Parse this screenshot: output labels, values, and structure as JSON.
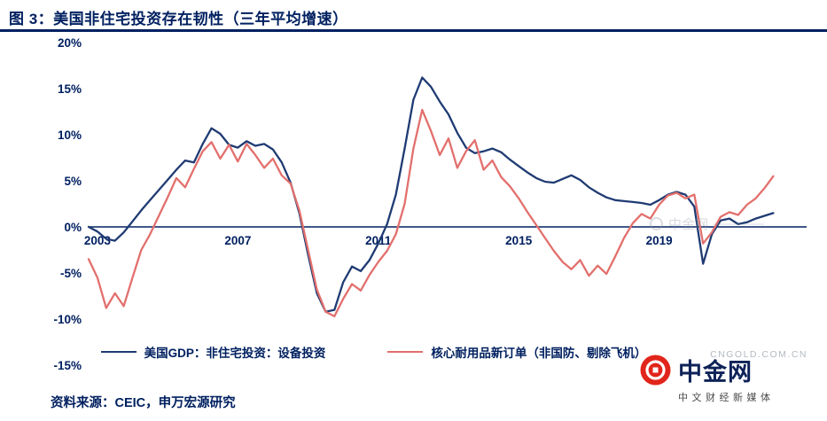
{
  "header": {
    "title": "图 3：美国非住宅投资存在韧性（三年平均增速）"
  },
  "footer": {
    "source": "资料来源：CEIC，申万宏源研究"
  },
  "watermark": {
    "brand": "中金网",
    "tagline": "中文财经新媒体",
    "url": "CNGOLD.COM.CN",
    "inline_brand": "中金网",
    "dash": "————"
  },
  "colors": {
    "navy_text": "#002060",
    "blue_line": "#1f3b73",
    "red_line": "#e2706d",
    "logo_red": "#e1251b"
  },
  "chart_data": {
    "type": "line",
    "title": "美国非住宅投资存在韧性（三年平均增速）",
    "xlabel": "",
    "ylabel": "",
    "y_suffix": "%",
    "grid": false,
    "legend_position": "bottom",
    "xlim": [
      2002.75,
      2023.2
    ],
    "ylim": [
      -15,
      20
    ],
    "xticks": [
      2003,
      2007,
      2011,
      2015,
      2019
    ],
    "yticks": [
      20,
      15,
      10,
      5,
      0,
      -5,
      -10,
      -15
    ],
    "x": [
      2002.75,
      2003.0,
      2003.25,
      2003.5,
      2003.75,
      2004.0,
      2004.25,
      2004.5,
      2004.75,
      2005.0,
      2005.25,
      2005.5,
      2005.75,
      2006.0,
      2006.25,
      2006.5,
      2006.75,
      2007.0,
      2007.25,
      2007.5,
      2007.75,
      2008.0,
      2008.25,
      2008.5,
      2008.75,
      2009.0,
      2009.25,
      2009.5,
      2009.75,
      2010.0,
      2010.25,
      2010.5,
      2010.75,
      2011.0,
      2011.25,
      2011.5,
      2011.75,
      2012.0,
      2012.25,
      2012.5,
      2012.75,
      2013.0,
      2013.25,
      2013.5,
      2013.75,
      2014.0,
      2014.25,
      2014.5,
      2014.75,
      2015.0,
      2015.25,
      2015.5,
      2015.75,
      2016.0,
      2016.25,
      2016.5,
      2016.75,
      2017.0,
      2017.25,
      2017.5,
      2017.75,
      2018.0,
      2018.25,
      2018.5,
      2018.75,
      2019.0,
      2019.25,
      2019.5,
      2019.75,
      2020.0,
      2020.25,
      2020.5,
      2020.75,
      2021.0,
      2021.25,
      2021.5,
      2021.75,
      2022.0,
      2022.25
    ],
    "series": [
      {
        "name": "美国GDP：非住宅投资：设备投资",
        "color": "#1f3b73",
        "values": [
          0.0,
          -0.5,
          -1.3,
          -1.5,
          -0.6,
          0.6,
          1.8,
          2.9,
          4.0,
          5.1,
          6.2,
          7.2,
          7.0,
          9.0,
          10.7,
          10.1,
          8.9,
          8.6,
          9.3,
          8.8,
          9.0,
          8.4,
          7.0,
          4.8,
          1.5,
          -3.0,
          -7.2,
          -9.2,
          -9.0,
          -6.0,
          -4.3,
          -4.8,
          -3.6,
          -1.8,
          0.3,
          3.5,
          8.5,
          13.8,
          16.2,
          15.2,
          13.6,
          12.2,
          10.2,
          8.6,
          8.0,
          8.2,
          8.5,
          8.1,
          7.3,
          6.6,
          5.9,
          5.3,
          4.9,
          4.8,
          5.2,
          5.6,
          5.1,
          4.3,
          3.7,
          3.2,
          2.9,
          2.8,
          2.7,
          2.6,
          2.4,
          2.9,
          3.5,
          3.8,
          3.5,
          2.2,
          -4.0,
          -0.8,
          0.7,
          0.9,
          0.3,
          0.5,
          0.9,
          1.2,
          1.5
        ]
      },
      {
        "name": "核心耐用品新订单（非国防、剔除飞机）",
        "color": "#e2706d",
        "values": [
          -3.5,
          -5.5,
          -8.8,
          -7.2,
          -8.6,
          -5.5,
          -2.5,
          -0.8,
          1.2,
          3.2,
          5.3,
          4.3,
          6.3,
          8.2,
          9.2,
          7.4,
          8.9,
          7.1,
          9.0,
          7.8,
          6.4,
          7.4,
          5.6,
          4.7,
          1.8,
          -2.5,
          -6.8,
          -9.2,
          -9.7,
          -7.8,
          -6.2,
          -6.9,
          -5.2,
          -3.8,
          -2.6,
          -0.8,
          2.5,
          8.5,
          12.7,
          10.4,
          7.8,
          9.6,
          6.4,
          8.2,
          9.4,
          6.2,
          7.2,
          5.4,
          4.4,
          3.1,
          1.6,
          0.2,
          -1.2,
          -2.6,
          -3.8,
          -4.6,
          -3.6,
          -5.3,
          -4.2,
          -5.1,
          -3.2,
          -1.2,
          0.4,
          1.4,
          0.9,
          2.4,
          3.4,
          3.7,
          3.1,
          3.5,
          -1.8,
          -0.6,
          1.1,
          1.6,
          1.3,
          2.4,
          3.1,
          4.2,
          5.5
        ]
      }
    ]
  }
}
